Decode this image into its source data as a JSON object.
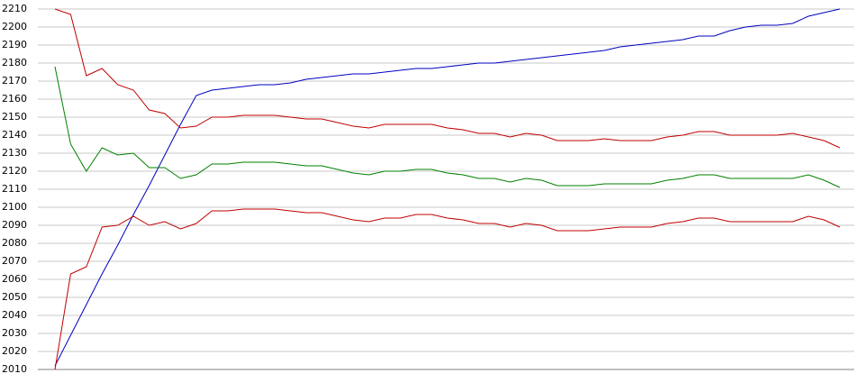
{
  "chart_data": {
    "type": "line",
    "categories": [
      null,
      null,
      null,
      null,
      null,
      null,
      null,
      null,
      null,
      null,
      null,
      null,
      null,
      null,
      null,
      null,
      null,
      null,
      null,
      null,
      null,
      null,
      null,
      null,
      null,
      null,
      null,
      null,
      null,
      null,
      null,
      null,
      null,
      null,
      null,
      null,
      null,
      null,
      null,
      null,
      null,
      null,
      null,
      null,
      null,
      null,
      null,
      null,
      null,
      null,
      null
    ],
    "series": [
      {
        "color": "#0000c0",
        "values": [
          2012,
          2029,
          2046,
          2063,
          2079,
          2096,
          2112,
          2129,
          2146,
          2162,
          2165,
          2166,
          2167,
          2168,
          2168,
          2169,
          2171,
          2172,
          2173,
          2174,
          2174,
          2175,
          2176,
          2177,
          2177,
          2178,
          2179,
          2180,
          2180,
          2181,
          2182,
          2183,
          2184,
          2185,
          2186,
          2187,
          2189,
          2190,
          2191,
          2192,
          2193,
          2195,
          2195,
          2198,
          2200,
          2201,
          2201,
          2202,
          2206,
          2208,
          2210
        ]
      },
      {
        "color": "#c00000",
        "values": [
          2210,
          2207,
          2173,
          2177,
          2168,
          2165,
          2154,
          2152,
          2144,
          2145,
          2150,
          2150,
          2151,
          2151,
          2151,
          2150,
          2149,
          2149,
          2147,
          2145,
          2144,
          2146,
          2146,
          2146,
          2146,
          2144,
          2143,
          2141,
          2141,
          2139,
          2141,
          2140,
          2137,
          2137,
          2137,
          2138,
          2137,
          2137,
          2137,
          2139,
          2140,
          2142,
          2142,
          2140,
          2140,
          2140,
          2140,
          2141,
          2139,
          2137,
          2133
        ]
      },
      {
        "color": "#008000",
        "values": [
          2178,
          2135,
          2120,
          2133,
          2129,
          2130,
          2122,
          2122,
          2116,
          2118,
          2124,
          2124,
          2125,
          2125,
          2125,
          2124,
          2123,
          2123,
          2121,
          2119,
          2118,
          2120,
          2120,
          2121,
          2121,
          2119,
          2118,
          2116,
          2116,
          2114,
          2116,
          2115,
          2112,
          2112,
          2112,
          2113,
          2113,
          2113,
          2113,
          2115,
          2116,
          2118,
          2118,
          2116,
          2116,
          2116,
          2116,
          2116,
          2118,
          2115,
          2111
        ]
      },
      {
        "color": "#c00000",
        "values": [
          2010,
          2063,
          2067,
          2089,
          2090,
          2095,
          2090,
          2092,
          2088,
          2091,
          2098,
          2098,
          2099,
          2099,
          2099,
          2098,
          2097,
          2097,
          2095,
          2093,
          2092,
          2094,
          2094,
          2096,
          2096,
          2094,
          2093,
          2091,
          2091,
          2089,
          2091,
          2090,
          2087,
          2087,
          2087,
          2088,
          2089,
          2089,
          2089,
          2091,
          2092,
          2094,
          2094,
          2092,
          2092,
          2092,
          2092,
          2092,
          2095,
          2093,
          2089
        ]
      }
    ],
    "ylim": [
      2010,
      2210
    ],
    "yticks": [
      2010,
      2020,
      2030,
      2040,
      2050,
      2060,
      2070,
      2080,
      2090,
      2100,
      2110,
      2120,
      2130,
      2140,
      2150,
      2160,
      2170,
      2180,
      2190,
      2200,
      2210
    ],
    "grid": true
  }
}
